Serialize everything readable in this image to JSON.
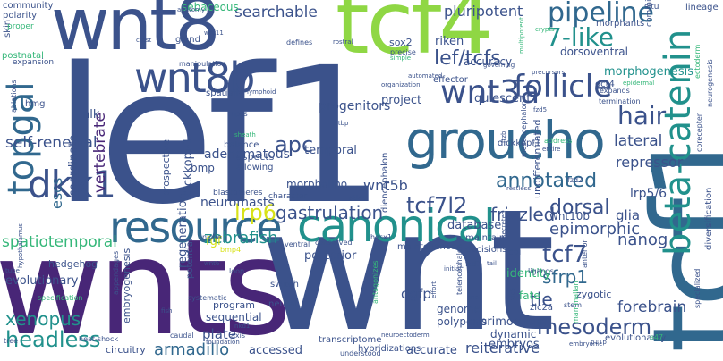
{
  "cloud": {
    "palette": {
      "purple": "#482677",
      "indigo": "#3b528b",
      "blue": "#31688e",
      "teal": "#21918c",
      "green": "#35b779",
      "lime": "#8fd744",
      "yellow": "#d8e219",
      "light": "#b5de2b"
    },
    "words": [
      {
        "text": "lef1",
        "color": "#3b528b"
      },
      {
        "text": "wnts",
        "color": "#482677"
      },
      {
        "text": "wnt",
        "color": "#3b528b"
      },
      {
        "text": "tcf1",
        "color": "#31688e"
      },
      {
        "text": "tcf4",
        "color": "#8fd744"
      },
      {
        "text": "wnt8",
        "color": "#3b528b"
      },
      {
        "text": "groucho",
        "color": "#31688e"
      },
      {
        "text": "canonical",
        "color": "#21918c"
      },
      {
        "text": "resource",
        "color": "#31688e"
      },
      {
        "text": "wnt8b",
        "color": "#3b528b"
      },
      {
        "text": "beta-catenin",
        "color": "#21918c"
      },
      {
        "text": "topgal",
        "color": "#31688e"
      },
      {
        "text": "dkk1",
        "color": "#3b528b"
      },
      {
        "text": "follicle",
        "color": "#3b528b"
      },
      {
        "text": "wnt3a",
        "color": "#3b528b"
      },
      {
        "text": "hair",
        "color": "#3b528b"
      },
      {
        "text": "pipeline",
        "color": "#31688e"
      },
      {
        "text": "7-like",
        "color": "#21918c"
      },
      {
        "text": "lef/tcfs",
        "color": "#3b528b"
      },
      {
        "text": "searchable",
        "color": "#3b528b"
      },
      {
        "text": "pluripotent",
        "color": "#3b528b"
      },
      {
        "text": "apc",
        "color": "#3b528b"
      },
      {
        "text": "annotated",
        "color": "#31688e"
      },
      {
        "text": "lrp6",
        "color": "#d8e219"
      },
      {
        "text": "gastrulation",
        "color": "#3b528b"
      },
      {
        "text": "tcf7l2",
        "color": "#3b528b"
      },
      {
        "text": "zebrafish",
        "color": "#21918c"
      },
      {
        "text": "frizzled",
        "color": "#3b528b"
      },
      {
        "text": "vertebrate",
        "color": "#482677"
      },
      {
        "text": "mesoderm",
        "color": "#3b528b"
      },
      {
        "text": "headless",
        "color": "#21918c"
      },
      {
        "text": "armadillo",
        "color": "#31688e"
      },
      {
        "text": "xenopus",
        "color": "#21918c"
      },
      {
        "text": "tcf7",
        "color": "#3b528b"
      },
      {
        "text": "sfrp1",
        "color": "#31688e"
      },
      {
        "text": "tle",
        "color": "#3b528b"
      },
      {
        "text": "forebrain",
        "color": "#3b528b"
      },
      {
        "text": "epimorphic",
        "color": "#3b528b"
      },
      {
        "text": "dorsal",
        "color": "#3b528b"
      },
      {
        "text": "self-renewal",
        "color": "#3b528b"
      },
      {
        "text": "spatiotemporal",
        "color": "#35b779"
      },
      {
        "text": "escs",
        "color": "#31688e"
      },
      {
        "text": "nanog",
        "color": "#3b528b"
      },
      {
        "text": "lateral",
        "color": "#3b528b"
      },
      {
        "text": "repressor",
        "color": "#3b528b"
      },
      {
        "text": "wnt5b",
        "color": "#3b528b"
      },
      {
        "text": "neuromasts",
        "color": "#3b528b"
      },
      {
        "text": "lrp5/6",
        "color": "#3b528b"
      },
      {
        "text": "dgfp",
        "color": "#3b528b"
      },
      {
        "text": "glia",
        "color": "#3b528b"
      },
      {
        "text": "plate",
        "color": "#3b528b"
      },
      {
        "text": "adenomatous",
        "color": "#3b528b"
      },
      {
        "text": "regeneration",
        "color": "#3b528b"
      },
      {
        "text": "dickkopf-1",
        "color": "#3b528b"
      },
      {
        "text": "progenitors",
        "color": "#3b528b"
      },
      {
        "text": "quiescent",
        "color": "#3b528b"
      },
      {
        "text": "project",
        "color": "#3b528b"
      },
      {
        "text": "morphogenesis",
        "color": "#21918c"
      },
      {
        "text": "dorsoventral",
        "color": "#3b528b"
      },
      {
        "text": "undifferentiated",
        "color": "#3b528b"
      },
      {
        "text": "coordinate",
        "color": "#3b528b"
      },
      {
        "text": "posterior",
        "color": "#3b528b"
      },
      {
        "text": "temporal",
        "color": "#3b528b"
      },
      {
        "text": "sebaceous",
        "color": "#35b779"
      },
      {
        "text": "riken",
        "color": "#3b528b"
      },
      {
        "text": "accuracy",
        "color": "#3b528b"
      },
      {
        "text": "morpholino",
        "color": "#3b528b"
      },
      {
        "text": "identity",
        "color": "#35b779"
      },
      {
        "text": "fate",
        "color": "#35b779"
      },
      {
        "text": "primordium",
        "color": "#3b528b"
      },
      {
        "text": "zygotic",
        "color": "#3b528b"
      },
      {
        "text": "embryos",
        "color": "#3b528b"
      },
      {
        "text": "genome",
        "color": "#3b528b"
      },
      {
        "text": "polyposis",
        "color": "#3b528b"
      },
      {
        "text": "dynamic",
        "color": "#3b528b"
      },
      {
        "text": "database",
        "color": "#3b528b"
      },
      {
        "text": "wnt10b",
        "color": "#3b528b"
      },
      {
        "text": "accessed",
        "color": "#3b528b"
      },
      {
        "text": "accurate",
        "color": "#3b528b"
      },
      {
        "text": "reiterative",
        "color": "#3b528b"
      },
      {
        "text": "evolutionary",
        "color": "#3b528b"
      },
      {
        "text": "circuitry",
        "color": "#3b528b"
      },
      {
        "text": "embryogenesis",
        "color": "#3b528b"
      },
      {
        "text": "sequential",
        "color": "#3b528b"
      },
      {
        "text": "program",
        "color": "#3b528b"
      },
      {
        "text": "fgf",
        "color": "#d8e219"
      },
      {
        "text": "hedgehog",
        "color": "#3b528b"
      },
      {
        "text": "nlk",
        "color": "#3b528b"
      },
      {
        "text": "bmp",
        "color": "#3b528b"
      },
      {
        "text": "community",
        "color": "#3b528b"
      },
      {
        "text": "polarity",
        "color": "#3b528b"
      },
      {
        "text": "skin",
        "color": "#3b528b"
      },
      {
        "text": "postnatal",
        "color": "#35b779"
      },
      {
        "text": "expansion",
        "color": "#3b528b"
      },
      {
        "text": "proper",
        "color": "#35b779"
      },
      {
        "text": "anatomy",
        "color": "#3b528b"
      },
      {
        "text": "wnt11",
        "color": "#3b528b"
      },
      {
        "text": "gland",
        "color": "#3b528b"
      },
      {
        "text": "crest",
        "color": "#3b528b"
      },
      {
        "text": "defines",
        "color": "#3b528b"
      },
      {
        "text": "rostral",
        "color": "#3b528b"
      },
      {
        "text": "sox2",
        "color": "#3b528b"
      },
      {
        "text": "precise",
        "color": "#3b528b"
      },
      {
        "text": "simple",
        "color": "#35b779"
      },
      {
        "text": "effector",
        "color": "#3b528b"
      },
      {
        "text": "committed",
        "color": "#3b528b"
      },
      {
        "text": "lineage",
        "color": "#3b528b"
      },
      {
        "text": "situ",
        "color": "#3b528b"
      },
      {
        "text": "morphants",
        "color": "#3b528b"
      },
      {
        "text": "crypts",
        "color": "#35b779"
      },
      {
        "text": "manipulation",
        "color": "#3b528b"
      },
      {
        "text": "spatially",
        "color": "#3b528b"
      },
      {
        "text": "lymphoid",
        "color": "#3b528b"
      },
      {
        "text": "npcs",
        "color": "#3b528b"
      },
      {
        "text": "automated",
        "color": "#3b528b"
      },
      {
        "text": "governing",
        "color": "#3b528b"
      },
      {
        "text": "precursors",
        "color": "#3b528b"
      },
      {
        "text": "oct4",
        "color": "#3b528b"
      },
      {
        "text": "epidermal",
        "color": "#35b779"
      },
      {
        "text": "expands",
        "color": "#3b528b"
      },
      {
        "text": "termination",
        "color": "#3b528b"
      },
      {
        "text": "ectoderm",
        "color": "#35b779"
      },
      {
        "text": "neurogenesis",
        "color": "#3b528b"
      },
      {
        "text": "corecepter",
        "color": "#3b528b"
      },
      {
        "text": "diversification",
        "color": "#3b528b"
      },
      {
        "text": "specialized",
        "color": "#3b528b"
      },
      {
        "text": "hmg",
        "color": "#3b528b"
      },
      {
        "text": "ablations",
        "color": "#3b528b"
      },
      {
        "text": "sheath",
        "color": "#35b779"
      },
      {
        "text": "balance",
        "color": "#3b528b"
      },
      {
        "text": "aspects",
        "color": "#3b528b"
      },
      {
        "text": "allowing",
        "color": "#3b528b"
      },
      {
        "text": "prospective",
        "color": "#3b528b"
      },
      {
        "text": "potential",
        "color": "#3b528b"
      },
      {
        "text": "blastomeres",
        "color": "#3b528b"
      },
      {
        "text": "character",
        "color": "#3b528b"
      },
      {
        "text": "ctbp",
        "color": "#3b528b"
      },
      {
        "text": "atlas",
        "color": "#3b528b"
      },
      {
        "text": "diencephalon",
        "color": "#3b528b"
      },
      {
        "text": "frzb",
        "color": "#3b528b"
      },
      {
        "text": "fzd5",
        "color": "#3b528b"
      },
      {
        "text": "dickkopf1",
        "color": "#3b528b"
      },
      {
        "text": "mesencephalon",
        "color": "#3b528b"
      },
      {
        "text": "address",
        "color": "#35b779"
      },
      {
        "text": "entire",
        "color": "#3b528b"
      },
      {
        "text": "fzd2",
        "color": "#3b528b"
      },
      {
        "text": "secreted",
        "color": "#3b528b"
      },
      {
        "text": "restless",
        "color": "#3b528b"
      },
      {
        "text": "maintains",
        "color": "#3b528b"
      },
      {
        "text": "decisions",
        "color": "#3b528b"
      },
      {
        "text": "coi",
        "color": "#3b528b"
      },
      {
        "text": "fzd7",
        "color": "#3b528b"
      },
      {
        "text": "tail",
        "color": "#3b528b"
      },
      {
        "text": "ligands",
        "color": "#3b528b"
      },
      {
        "text": "zic2a",
        "color": "#3b528b"
      },
      {
        "text": "zic5",
        "color": "#3b528b"
      },
      {
        "text": "stem",
        "color": "#3b528b"
      },
      {
        "text": "niche",
        "color": "#3b528b"
      },
      {
        "text": "ventral",
        "color": "#3b528b"
      },
      {
        "text": "maintenance",
        "color": "#3b528b"
      },
      {
        "text": "hesx1",
        "color": "#3b528b"
      },
      {
        "text": "conserved",
        "color": "#3b528b"
      },
      {
        "text": "bmp4",
        "color": "#d8e219"
      },
      {
        "text": "wnt6",
        "color": "#3b528b"
      },
      {
        "text": "loop",
        "color": "#3b528b"
      },
      {
        "text": "switch",
        "color": "#3b528b"
      },
      {
        "text": "nkd1",
        "color": "#3b528b"
      },
      {
        "text": "neural",
        "color": "#3b528b"
      },
      {
        "text": "axis",
        "color": "#3b528b"
      },
      {
        "text": "caudal",
        "color": "#3b528b"
      },
      {
        "text": "fish",
        "color": "#3b528b"
      },
      {
        "text": "appendages",
        "color": "#3b528b"
      },
      {
        "text": "systematic",
        "color": "#3b528b"
      },
      {
        "text": "specification",
        "color": "#35b779"
      },
      {
        "text": "hypothalamus",
        "color": "#3b528b"
      },
      {
        "text": "tube",
        "color": "#3b528b"
      },
      {
        "text": "heat-shock",
        "color": "#3b528b"
      },
      {
        "text": "tree",
        "color": "#3b528b"
      },
      {
        "text": "foundation",
        "color": "#3b528b"
      },
      {
        "text": "antagonizes",
        "color": "#3b528b"
      },
      {
        "text": "transcriptome",
        "color": "#3b528b"
      },
      {
        "text": "neuroectoderm",
        "color": "#3b528b"
      },
      {
        "text": "effort",
        "color": "#3b528b"
      },
      {
        "text": "telencephalon",
        "color": "#3b528b"
      },
      {
        "text": "rise",
        "color": "#3b528b"
      },
      {
        "text": "understood",
        "color": "#3b528b"
      },
      {
        "text": "hybridizations",
        "color": "#3b528b"
      },
      {
        "text": "evolutionarily",
        "color": "#3b528b"
      },
      {
        "text": "mammalian",
        "color": "#3b528b"
      },
      {
        "text": "anterior",
        "color": "#35b779"
      },
      {
        "text": "embryonic",
        "color": "#3b528b"
      },
      {
        "text": "p11p",
        "color": "#3b528b"
      },
      {
        "text": "e47",
        "color": "#3b528b"
      },
      {
        "text": "multipotent",
        "color": "#35b779"
      },
      {
        "text": "organization",
        "color": "#35b779"
      },
      {
        "text": "initial",
        "color": "#3b528b"
      },
      {
        "text": "mgc",
        "color": "#3b528b"
      }
    ]
  }
}
